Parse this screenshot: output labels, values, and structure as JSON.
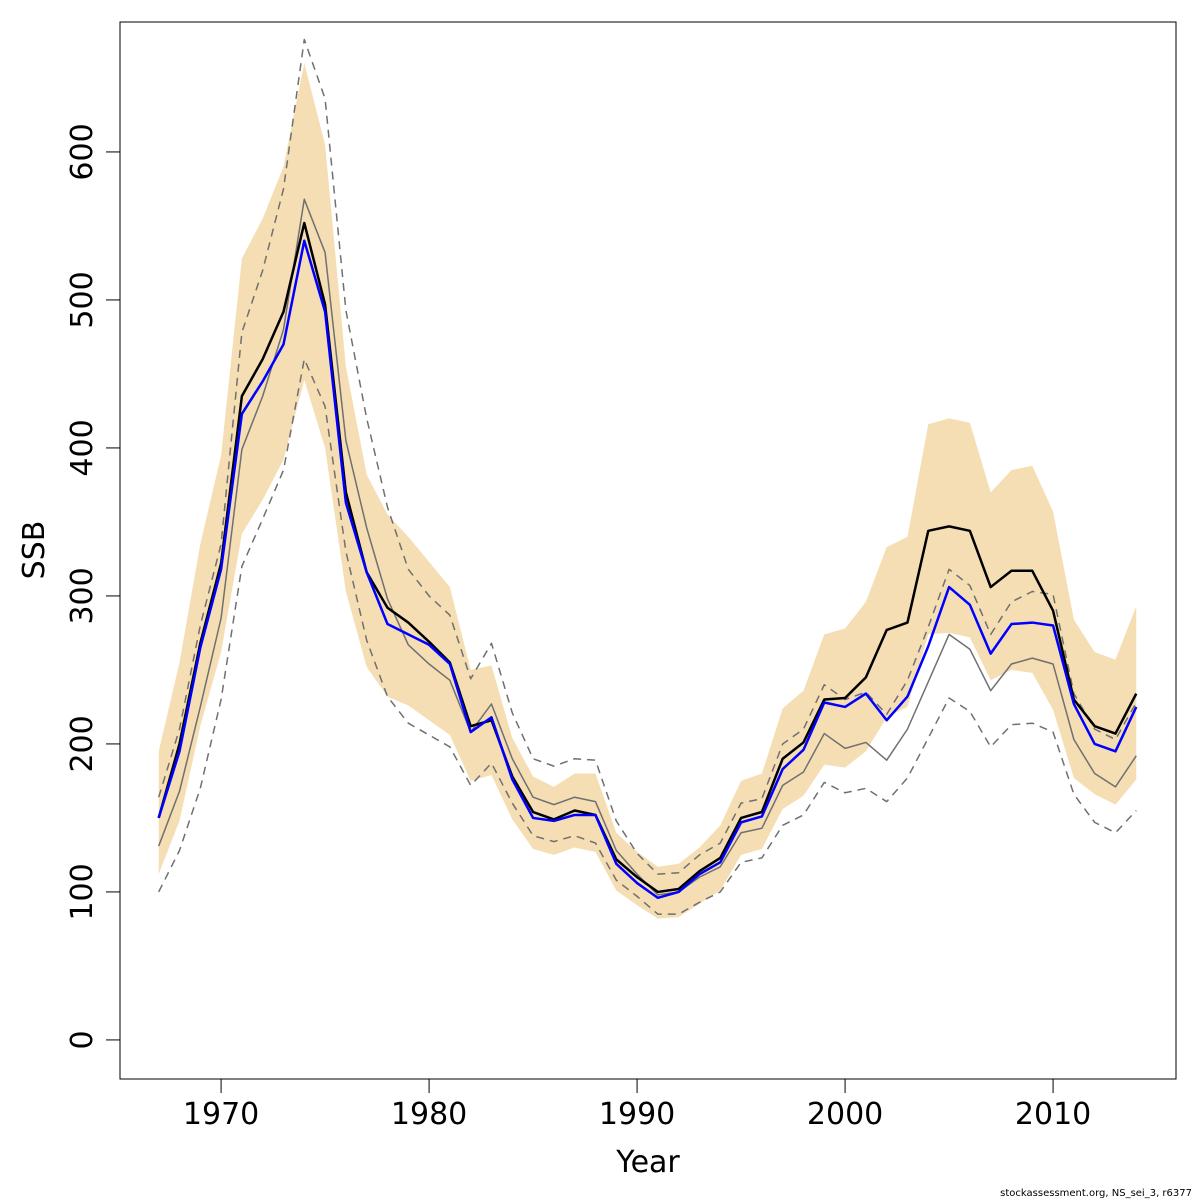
{
  "chart_data": {
    "type": "line",
    "xlabel": "Year",
    "ylabel": "SSB",
    "footnote": "stockassessment.org, NS_sei_3, r6377",
    "x": [
      1967,
      1968,
      1969,
      1970,
      1971,
      1972,
      1973,
      1974,
      1975,
      1976,
      1977,
      1978,
      1979,
      1980,
      1981,
      1982,
      1983,
      1984,
      1985,
      1986,
      1987,
      1988,
      1989,
      1990,
      1991,
      1992,
      1993,
      1994,
      1995,
      1996,
      1997,
      1998,
      1999,
      2000,
      2001,
      2002,
      2003,
      2004,
      2005,
      2006,
      2007,
      2008,
      2009,
      2010,
      2011,
      2012,
      2013,
      2014
    ],
    "xlim": [
      1965.14,
      2015.91
    ],
    "xticks": [
      1970,
      1980,
      1990,
      2000,
      2010
    ],
    "ylim": [
      -26.4,
      687.8
    ],
    "yticks": [
      0,
      100,
      200,
      300,
      400,
      500,
      600
    ],
    "band": {
      "color": "#f5deb3",
      "upper": [
        195,
        255,
        335,
        395,
        528,
        555,
        590,
        660,
        605,
        455,
        382,
        355,
        340,
        323,
        306,
        250,
        253,
        204,
        178,
        171,
        180,
        180,
        140,
        127,
        117,
        119,
        130,
        145,
        175,
        180,
        224,
        236,
        274,
        278,
        296,
        333,
        340,
        416,
        420,
        417,
        370,
        385,
        388,
        357,
        284,
        262,
        257,
        293
      ],
      "lower": [
        112,
        148,
        212,
        262,
        342,
        365,
        392,
        446,
        400,
        303,
        252,
        232,
        226,
        216,
        206,
        175,
        179,
        149,
        129,
        125,
        130,
        127,
        101,
        91,
        82,
        83,
        92,
        101,
        125,
        129,
        156,
        165,
        186,
        184,
        195,
        218,
        225,
        274,
        275,
        272,
        243,
        250,
        248,
        223,
        177,
        166,
        159,
        176
      ]
    },
    "series": [
      {
        "color": "#707070",
        "dashed": true,
        "width": 1.5,
        "values": [
          164,
          210,
          280,
          335,
          478,
          520,
          575,
          676,
          636,
          493,
          420,
          360,
          318,
          300,
          287,
          244,
          268,
          221,
          190,
          185,
          190,
          189,
          148,
          126,
          112,
          113,
          125,
          133,
          160,
          163,
          200,
          210,
          240,
          230,
          235,
          220,
          243,
          279,
          318,
          307,
          274,
          296,
          303,
          301,
          234,
          210,
          203,
          228
        ]
      },
      {
        "color": "#707070",
        "dashed": true,
        "width": 1.5,
        "values": [
          100,
          128,
          170,
          230,
          320,
          352,
          385,
          460,
          428,
          330,
          270,
          232,
          214,
          206,
          198,
          172,
          187,
          160,
          138,
          134,
          138,
          133,
          108,
          97,
          85,
          85,
          93,
          100,
          120,
          123,
          145,
          152,
          174,
          167,
          170,
          161,
          177,
          204,
          231,
          222,
          198,
          213,
          214,
          208,
          166,
          147,
          140,
          155
        ]
      },
      {
        "color": "#707070",
        "dashed": false,
        "width": 1.5,
        "values": [
          131,
          168,
          225,
          285,
          399,
          435,
          480,
          568,
          532,
          405,
          346,
          298,
          267,
          254,
          243,
          208,
          227,
          190,
          164,
          159,
          164,
          161,
          128,
          112,
          98,
          100,
          110,
          117,
          140,
          143,
          172,
          181,
          207,
          197,
          201,
          189,
          210,
          242,
          274,
          264,
          236,
          254,
          258,
          254,
          203,
          180,
          171,
          192
        ]
      },
      {
        "color": "#000000",
        "dashed": false,
        "width": 2.5,
        "values": [
          150,
          200,
          268,
          322,
          435,
          460,
          492,
          552,
          497,
          370,
          316,
          292,
          282,
          269,
          255,
          212,
          216,
          178,
          154,
          149,
          155,
          152,
          122,
          110,
          100,
          102,
          114,
          123,
          150,
          154,
          190,
          201,
          230,
          231,
          245,
          277,
          282,
          344,
          347,
          344,
          306,
          317,
          317,
          290,
          230,
          212,
          207,
          234
        ]
      },
      {
        "color": "#0000ff",
        "dashed": false,
        "width": 2.5,
        "values": [
          150,
          195,
          265,
          318,
          423,
          445,
          470,
          540,
          492,
          363,
          316,
          281,
          274,
          267,
          254,
          208,
          218,
          176,
          150,
          148,
          152,
          152,
          119,
          106,
          96,
          100,
          112,
          120,
          147,
          151,
          183,
          196,
          228,
          225,
          234,
          216,
          232,
          266,
          306,
          294,
          261,
          281,
          282,
          280,
          227,
          200,
          195,
          225
        ]
      }
    ]
  }
}
